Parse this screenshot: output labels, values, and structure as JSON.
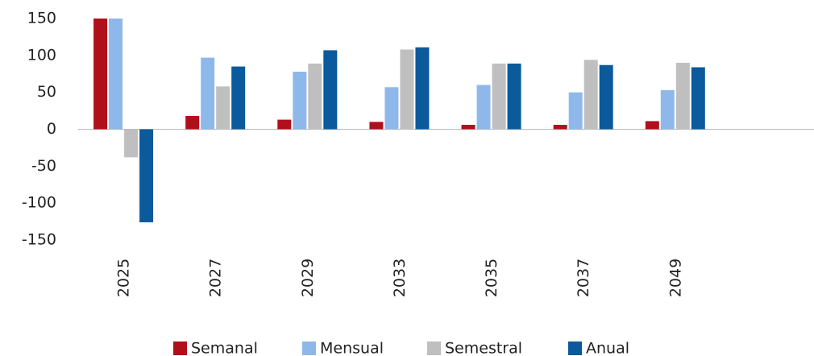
{
  "chart_data": {
    "type": "bar",
    "categories": [
      "2025",
      "2027",
      "2029",
      "2033",
      "2035",
      "2037",
      "2049",
      null
    ],
    "series": [
      {
        "name": "Semanal",
        "color": "#b0101c",
        "values": [
          150,
          18,
          13,
          10,
          6,
          6,
          11,
          null
        ]
      },
      {
        "name": "Mensual",
        "color": "#8fb8ea",
        "values": [
          150,
          97,
          78,
          57,
          60,
          50,
          53,
          null
        ]
      },
      {
        "name": "Semestral",
        "color": "#bfbfbf",
        "values": [
          -38,
          58,
          89,
          108,
          89,
          94,
          90,
          null
        ]
      },
      {
        "name": "Anual",
        "color": "#0a5a9c",
        "values": [
          -126,
          85,
          107,
          111,
          89,
          87,
          84,
          null
        ]
      }
    ],
    "ylim": [
      -150,
      150
    ],
    "yticks": [
      -150,
      -100,
      -50,
      0,
      50,
      100,
      150
    ],
    "grid": false
  }
}
